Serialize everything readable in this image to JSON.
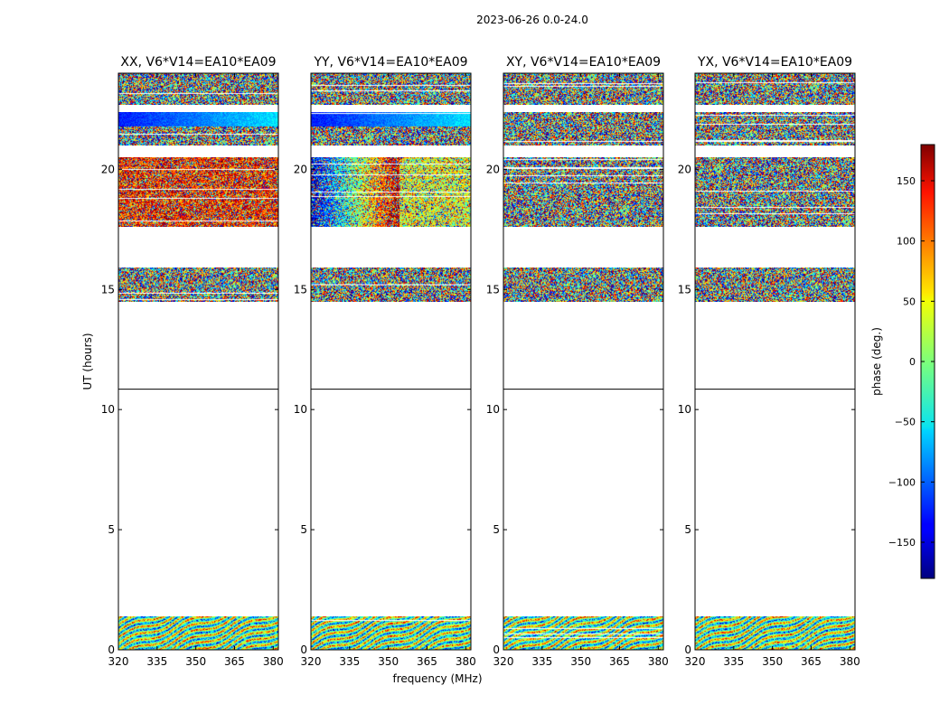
{
  "figure": {
    "suptitle": "2023-06-26 0.0-24.0",
    "xlabel": "frequency (MHz)",
    "ylabel": "UT (hours)"
  },
  "chart_data": {
    "type": "heatmap",
    "colormap": "jet",
    "xlim": [
      320,
      382
    ],
    "ylim": [
      0,
      24
    ],
    "x_ticks": [
      320,
      335,
      350,
      365,
      380
    ],
    "y_ticks": [
      0,
      5,
      10,
      15,
      20
    ],
    "data_bands_hours": [
      [
        0.0,
        1.4
      ],
      [
        14.5,
        15.9
      ],
      [
        17.6,
        20.5
      ],
      [
        21.0,
        22.4
      ],
      [
        22.7,
        24.0
      ]
    ],
    "gap_line_hour": 10.85,
    "panels": [
      {
        "title": "XX, V6*V14=EA10*EA09",
        "pattern": "structured"
      },
      {
        "title": "YY, V6*V14=EA10*EA09",
        "pattern": "structured"
      },
      {
        "title": "XY, V6*V14=EA10*EA09",
        "pattern": "noise"
      },
      {
        "title": "YX, V6*V14=EA10*EA09",
        "pattern": "noise"
      }
    ],
    "colorbar": {
      "label": "phase (deg.)",
      "range": [
        -180,
        180
      ],
      "ticks": [
        150,
        100,
        50,
        0,
        -50,
        -100,
        -150
      ],
      "tick_labels": [
        "150",
        "100",
        "50",
        "0",
        "−50",
        "−100",
        "−150"
      ]
    }
  }
}
